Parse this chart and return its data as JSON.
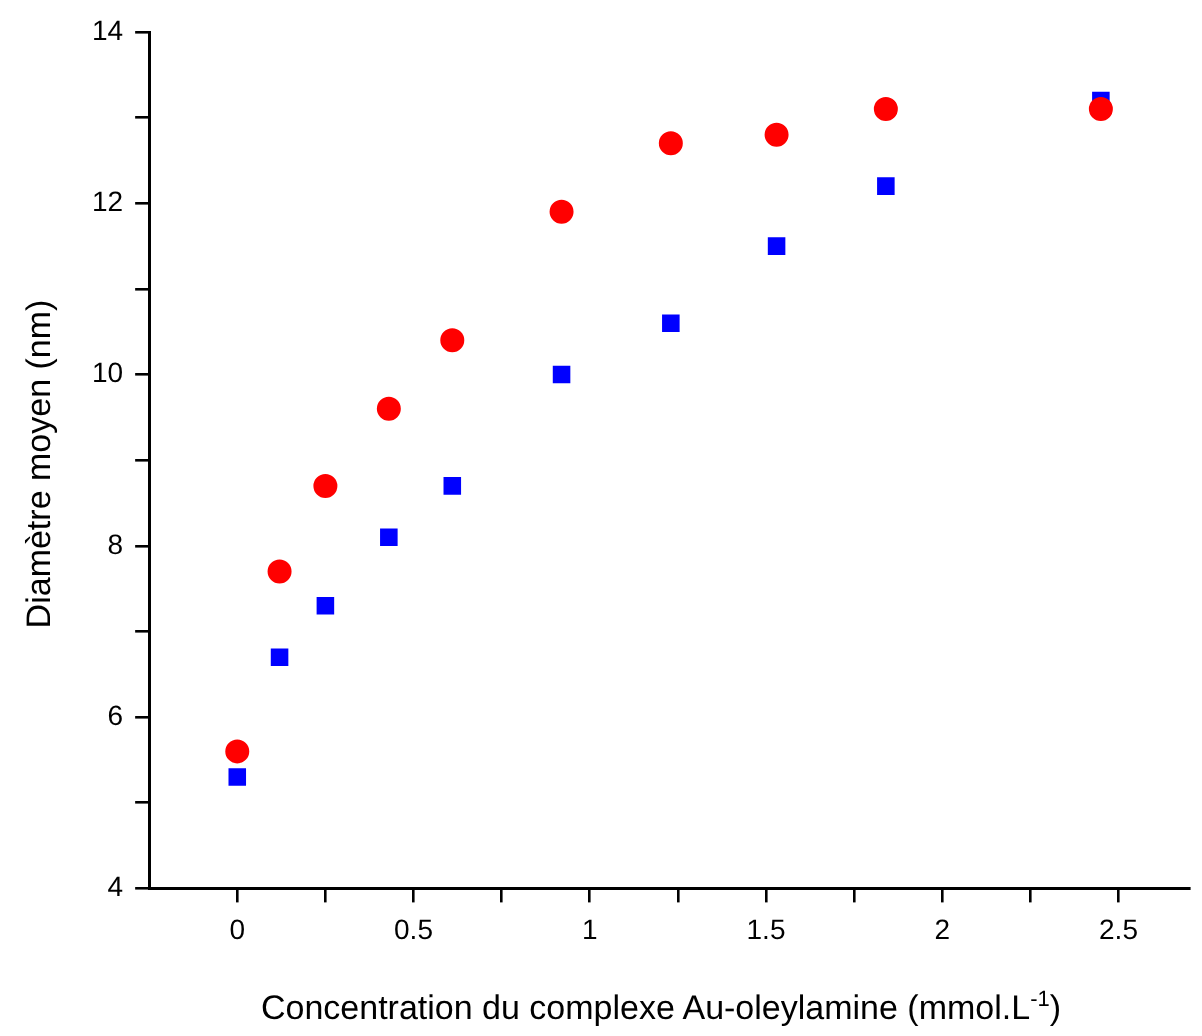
{
  "chart_data": {
    "type": "scatter",
    "xlabel": "Concentration du complexe Au-oleylamine (mmol.L$^{-1}$)",
    "ylabel": "Diamètre moyen (nm)",
    "xlim": [
      -0.25,
      2.7
    ],
    "xticks": [
      0,
      {
        "value": 0.25,
        "label": null
      },
      0.5,
      {
        "value": 0.75,
        "label": null
      },
      1,
      {
        "value": 1.25,
        "label": null
      },
      1.5,
      {
        "value": 1.75,
        "label": null
      },
      2,
      {
        "value": 2.25,
        "label": null
      },
      2.5
    ],
    "ylim": [
      4,
      14
    ],
    "yticks": [
      4,
      {
        "value": 5,
        "label": null
      },
      6,
      {
        "value": 7,
        "label": null
      },
      8,
      {
        "value": 9,
        "label": null
      },
      10,
      {
        "value": 11,
        "label": null
      },
      12,
      {
        "value": 13,
        "label": null
      },
      14
    ],
    "grid": false,
    "legend": false,
    "series": [
      {
        "color": "#ff0000",
        "marker": "circle",
        "x": [
          0,
          0.12,
          0.25,
          0.43,
          0.61,
          0.92,
          1.23,
          1.53,
          1.84,
          2.45
        ],
        "values": [
          5.6,
          7.7,
          8.7,
          9.6,
          10.4,
          11.9,
          12.7,
          12.8,
          13.1,
          13.1
        ]
      },
      {
        "color": "#0000ff",
        "marker": "square",
        "x": [
          0,
          0.12,
          0.25,
          0.43,
          0.61,
          0.92,
          1.23,
          1.53,
          1.84,
          2.45
        ],
        "values": [
          5.3,
          6.7,
          7.3,
          8.1,
          8.7,
          10.0,
          10.6,
          11.5,
          12.2,
          13.2
        ]
      }
    ]
  }
}
